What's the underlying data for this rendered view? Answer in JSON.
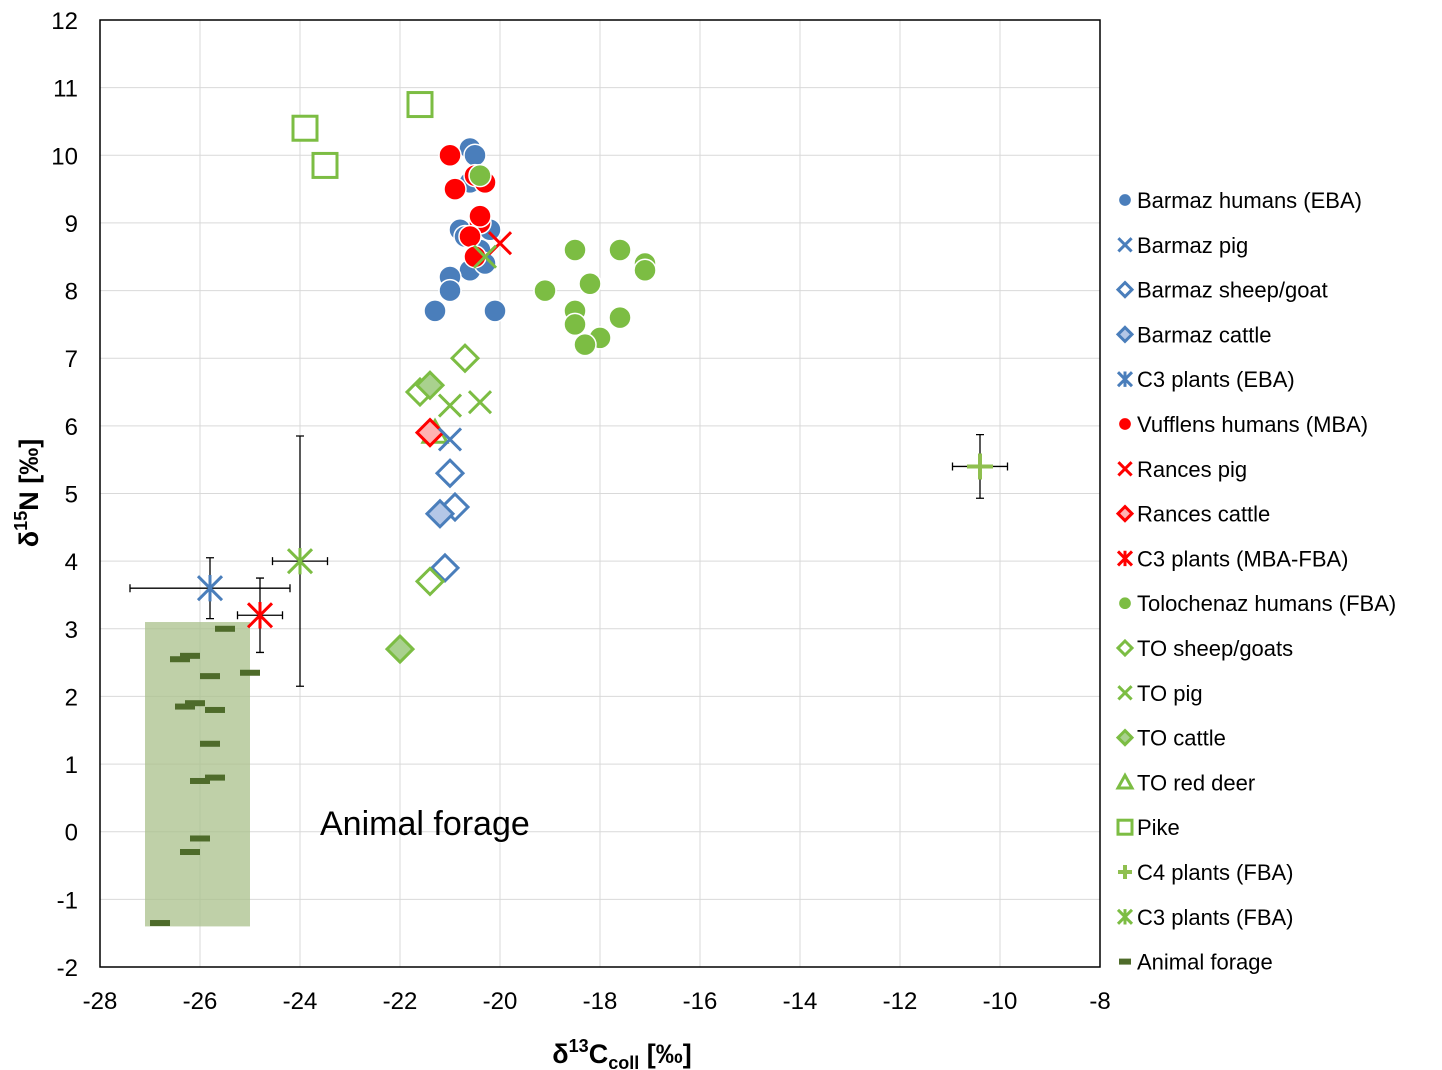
{
  "chart_data": {
    "type": "scatter",
    "xlabel": {
      "base": "δ",
      "sup": "13",
      "main": "C",
      "sub": "coll",
      "unit": " [‰]"
    },
    "ylabel": {
      "base": "δ",
      "sup": "15",
      "main": "N",
      "unit": " [‰]"
    },
    "xlim": [
      -28,
      -8
    ],
    "ylim": [
      -2,
      12
    ],
    "xticks": [
      -28,
      -26,
      -24,
      -22,
      -20,
      -18,
      -16,
      -14,
      -12,
      -10,
      -8
    ],
    "yticks": [
      -2,
      -1,
      0,
      1,
      2,
      3,
      4,
      5,
      6,
      7,
      8,
      9,
      10,
      11,
      12
    ],
    "grid": true,
    "legend_position": "right",
    "colors": {
      "blue": "#4f7fbf",
      "blue_dark": "#2f5597",
      "red": "#ff0000",
      "green": "#7cbd43",
      "green_dark": "#5a9a2c",
      "light_green": "#a9d18e",
      "olive": "#4e6b2a",
      "forage_box": "#a9c08b"
    },
    "annotation": {
      "text": "Animal forage",
      "region_x": [
        -27.1,
        -25.0
      ],
      "region_y": [
        -1.4,
        3.1
      ]
    },
    "series": [
      {
        "name": "Barmaz humans (EBA)",
        "marker": "circle",
        "color": "#4a7ebb",
        "points": [
          [
            -20.6,
            10.1
          ],
          [
            -20.5,
            10.0
          ],
          [
            -20.8,
            8.9
          ],
          [
            -20.7,
            8.8
          ],
          [
            -20.2,
            8.9
          ],
          [
            -20.4,
            8.6
          ],
          [
            -20.6,
            8.3
          ],
          [
            -20.3,
            8.4
          ],
          [
            -21.0,
            8.2
          ],
          [
            -21.0,
            8.0
          ],
          [
            -21.3,
            7.7
          ],
          [
            -20.1,
            7.7
          ],
          [
            -20.6,
            9.6
          ]
        ]
      },
      {
        "name": "Barmaz pig",
        "marker": "x",
        "color": "#4a7ebb",
        "points": [
          [
            -21.0,
            5.8
          ]
        ]
      },
      {
        "name": "Barmaz sheep/goat",
        "marker": "diamond-open",
        "color": "#4a7ebb",
        "points": [
          [
            -21.0,
            5.3
          ],
          [
            -20.9,
            4.8
          ],
          [
            -21.1,
            3.9
          ]
        ]
      },
      {
        "name": "Barmaz cattle",
        "marker": "diamond-filled-light",
        "color": "#4a7ebb",
        "points": [
          [
            -21.2,
            4.7
          ]
        ]
      },
      {
        "name": "C3 plants (EBA)",
        "marker": "asterisk",
        "color": "#4a7ebb",
        "points": [
          [
            -25.8,
            3.6,
            1.6,
            0.45
          ]
        ]
      },
      {
        "name": "Vufflens humans (MBA)",
        "marker": "circle",
        "color": "#ff0000",
        "points": [
          [
            -21.0,
            10.0
          ],
          [
            -20.9,
            9.5
          ],
          [
            -20.5,
            9.7
          ],
          [
            -20.3,
            9.6
          ],
          [
            -20.4,
            9.0
          ],
          [
            -20.6,
            8.8
          ],
          [
            -20.5,
            8.5
          ],
          [
            -20.4,
            9.1
          ]
        ]
      },
      {
        "name": "Rances pig",
        "marker": "x",
        "color": "#ff0000",
        "points": [
          [
            -20.0,
            8.7
          ]
        ]
      },
      {
        "name": "Rances cattle",
        "marker": "diamond-filled-light",
        "color": "#ff0000",
        "points": [
          [
            -21.4,
            5.9
          ]
        ]
      },
      {
        "name": "C3 plants (MBA-FBA)",
        "marker": "asterisk",
        "color": "#ff0000",
        "points": [
          [
            -24.8,
            3.2,
            0.45,
            0.55
          ]
        ]
      },
      {
        "name": "Tolochenaz humans (FBA)",
        "marker": "circle",
        "color": "#7cbd43",
        "points": [
          [
            -20.4,
            9.7
          ],
          [
            -18.5,
            8.6
          ],
          [
            -17.6,
            8.6
          ],
          [
            -17.1,
            8.4
          ],
          [
            -17.1,
            8.3
          ],
          [
            -18.2,
            8.1
          ],
          [
            -19.1,
            8.0
          ],
          [
            -18.5,
            7.7
          ],
          [
            -17.6,
            7.6
          ],
          [
            -18.5,
            7.5
          ],
          [
            -18.0,
            7.3
          ],
          [
            -18.3,
            7.2
          ]
        ]
      },
      {
        "name": "TO sheep/goats",
        "marker": "diamond-open",
        "color": "#7cbd43",
        "points": [
          [
            -20.7,
            7.0
          ],
          [
            -21.6,
            6.5
          ],
          [
            -21.4,
            3.7
          ]
        ]
      },
      {
        "name": "TO pig",
        "marker": "x",
        "color": "#7cbd43",
        "points": [
          [
            -21.0,
            6.3
          ],
          [
            -20.4,
            6.35
          ],
          [
            -20.3,
            8.5
          ]
        ]
      },
      {
        "name": "TO cattle",
        "marker": "diamond-filled-light",
        "color": "#7cbd43",
        "points": [
          [
            -21.4,
            6.6
          ],
          [
            -22.0,
            2.7
          ]
        ]
      },
      {
        "name": "TO red deer",
        "marker": "triangle-open",
        "color": "#7cbd43",
        "points": [
          [
            -21.3,
            5.9
          ]
        ]
      },
      {
        "name": "Pike",
        "marker": "square-open",
        "color": "#7cbd43",
        "points": [
          [
            -21.6,
            10.75
          ],
          [
            -23.9,
            10.4
          ],
          [
            -23.5,
            9.85
          ]
        ]
      },
      {
        "name": "C4 plants (FBA)",
        "marker": "plus",
        "color": "#8fbf4f",
        "points": [
          [
            -10.4,
            5.4,
            0.55,
            0.47
          ]
        ]
      },
      {
        "name": "C3 plants (FBA)",
        "marker": "asterisk",
        "color": "#7cbd43",
        "points": [
          [
            -24.0,
            4.0,
            0.55,
            1.85
          ]
        ]
      },
      {
        "name": "Animal forage",
        "marker": "dash",
        "color": "#4e6b2a",
        "points": [
          [
            -25.5,
            3.0
          ],
          [
            -26.2,
            2.6
          ],
          [
            -26.4,
            2.55
          ],
          [
            -25.0,
            2.35
          ],
          [
            -25.8,
            2.3
          ],
          [
            -26.1,
            1.9
          ],
          [
            -26.3,
            1.85
          ],
          [
            -25.7,
            1.8
          ],
          [
            -25.8,
            1.3
          ],
          [
            -25.7,
            0.8
          ],
          [
            -26.0,
            0.75
          ],
          [
            -26.0,
            -0.1
          ],
          [
            -26.2,
            -0.3
          ],
          [
            -26.8,
            -1.35
          ]
        ]
      }
    ]
  }
}
